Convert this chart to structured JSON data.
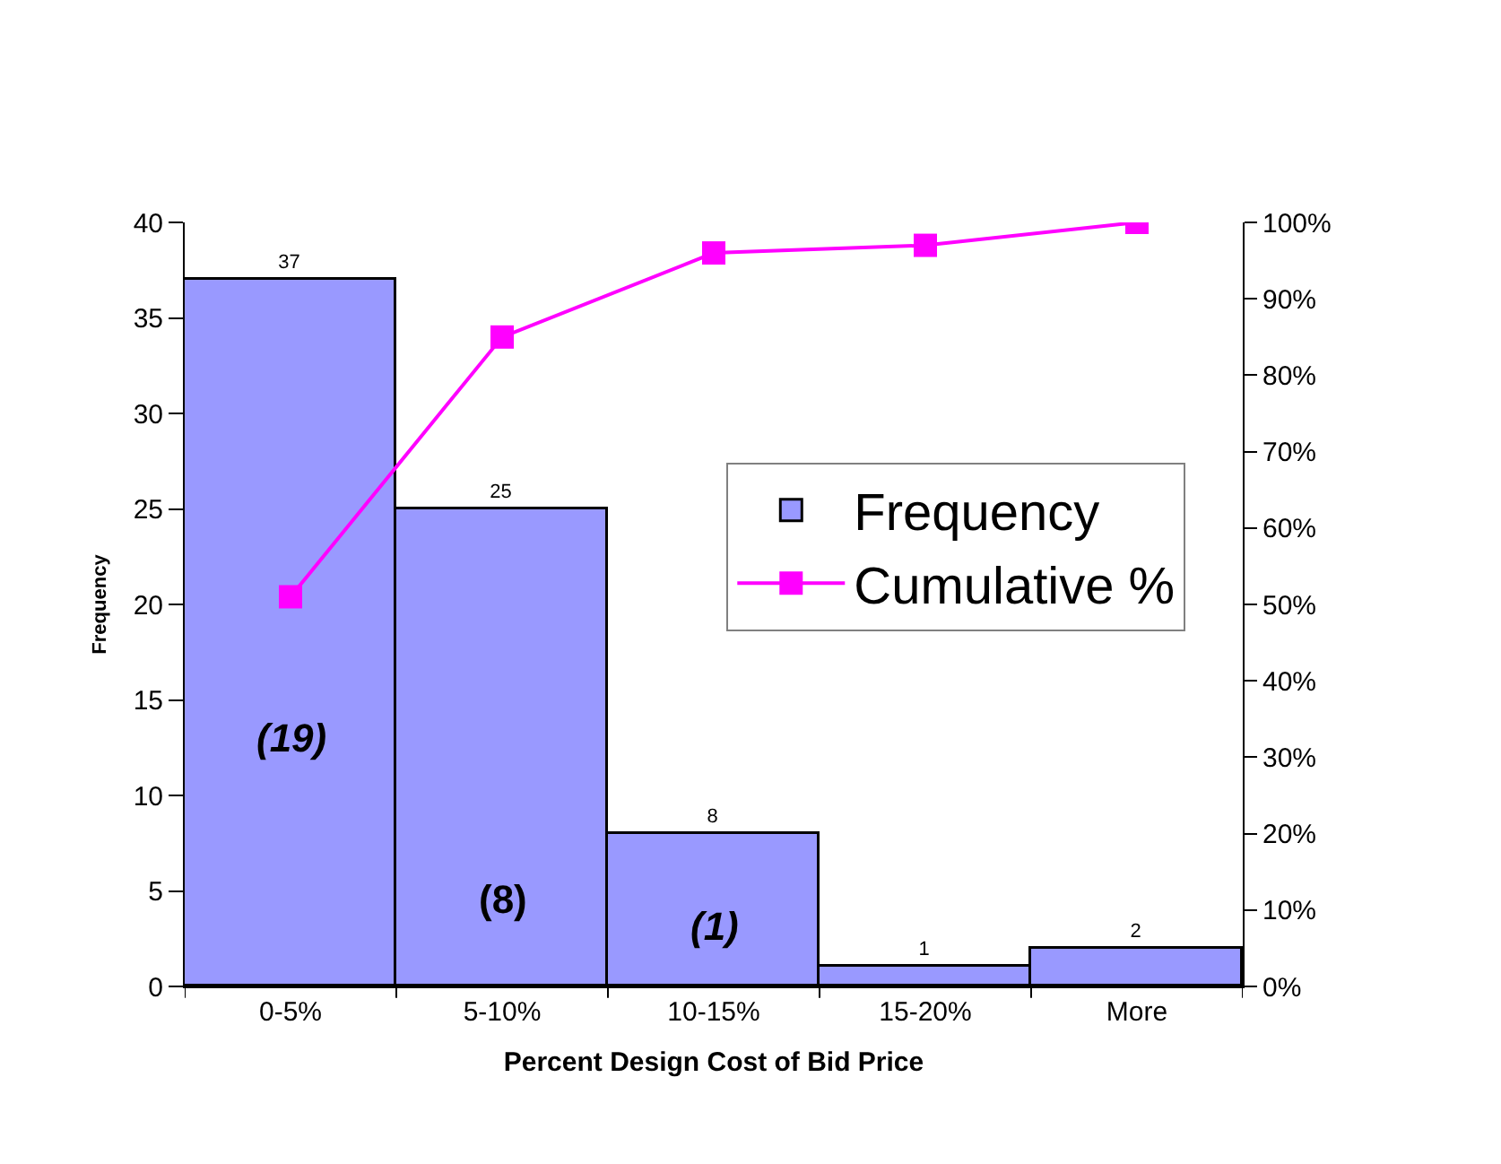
{
  "chart_data": {
    "type": "bar",
    "xlabel": "Percent Design Cost of Bid Price",
    "ylabel": "Frequency",
    "categories": [
      "0-5%",
      "5-10%",
      "10-15%",
      "15-20%",
      "More"
    ],
    "series": [
      {
        "name": "Frequency",
        "color": "#9999ff",
        "values": [
          37,
          25,
          8,
          1,
          2
        ],
        "value_labels": [
          "37",
          "25",
          "8",
          "1",
          "2"
        ]
      },
      {
        "name": "Cumulative %",
        "type": "line",
        "axis": "y2",
        "color": "#ff00ff",
        "values": [
          51,
          85,
          96,
          97,
          100
        ]
      }
    ],
    "ylim": [
      0,
      40
    ],
    "yticks": [
      0,
      5,
      10,
      15,
      20,
      25,
      30,
      35,
      40
    ],
    "y2lim": [
      0,
      100
    ],
    "y2ticks": [
      {
        "value": 0,
        "label": "0%"
      },
      {
        "value": 10,
        "label": "10%"
      },
      {
        "value": 20,
        "label": "20%"
      },
      {
        "value": 30,
        "label": "30%"
      },
      {
        "value": 40,
        "label": "40%"
      },
      {
        "value": 50,
        "label": "50%"
      },
      {
        "value": 60,
        "label": "60%"
      },
      {
        "value": 70,
        "label": "70%"
      },
      {
        "value": 80,
        "label": "80%"
      },
      {
        "value": 90,
        "label": "90%"
      },
      {
        "value": 100,
        "label": "100%"
      }
    ],
    "annotations": [
      "(19)",
      "(8)",
      "(1)"
    ],
    "legend": "right",
    "marker": "square",
    "line_style": "solid"
  }
}
